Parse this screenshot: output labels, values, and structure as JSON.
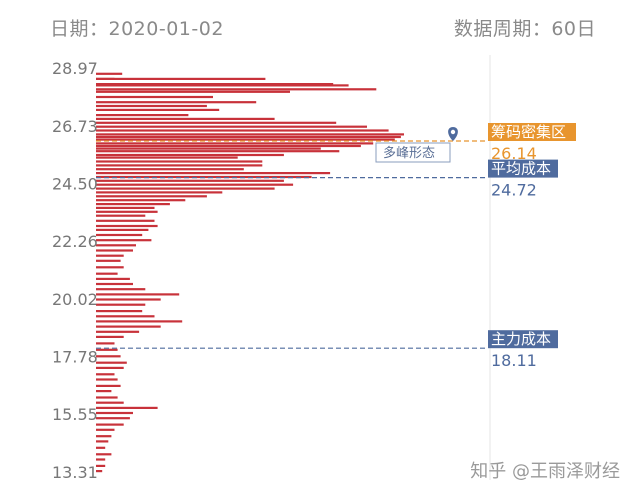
{
  "header": {
    "date_text": "日期：2020-01-02",
    "period_text": "数据周期：60日"
  },
  "colors": {
    "bars": "#c8323a",
    "chip_zone": "#e8952e",
    "avg_cost": "#4f6b9e",
    "main_cost": "#4f6b9e",
    "axis_text": "#777777",
    "divider": "#e4e4e4"
  },
  "chart_data": {
    "type": "bar",
    "orientation": "horizontal",
    "y_ticks": [
      "28.97",
      "26.73",
      "24.50",
      "22.26",
      "20.02",
      "17.78",
      "15.55",
      "13.31"
    ],
    "ylim": [
      13.31,
      28.97
    ],
    "x": [
      28.75,
      28.55,
      28.55,
      28.35,
      28.3,
      28.15,
      28.05,
      27.85,
      27.65,
      27.5,
      27.35,
      27.15,
      27.0,
      26.85,
      26.7,
      26.55,
      26.4,
      26.3,
      26.2,
      26.05,
      25.95,
      25.85,
      25.75,
      25.6,
      25.5,
      25.35,
      25.2,
      25.05,
      24.9,
      24.75,
      24.6,
      24.45,
      24.3,
      24.15,
      24.0,
      23.85,
      23.7,
      23.55,
      23.4,
      23.25,
      23.05,
      22.85,
      22.7,
      22.5,
      22.3,
      22.1,
      21.9,
      21.7,
      21.5,
      21.25,
      21.0,
      20.8,
      20.6,
      20.4,
      20.2,
      20.0,
      19.8,
      19.55,
      19.35,
      19.15,
      18.95,
      18.75,
      18.55,
      18.3,
      18.05,
      17.8,
      17.55,
      17.35,
      17.1,
      16.9,
      16.65,
      16.45,
      16.2,
      16.0,
      15.8,
      15.6,
      15.4,
      15.15,
      14.95,
      14.7,
      14.5,
      14.25,
      14.0,
      13.8,
      13.55,
      13.35
    ],
    "values": [
      8.5,
      6.0,
      55.0,
      77.0,
      82.0,
      91.0,
      63.0,
      38.0,
      52.0,
      36.0,
      40.0,
      30.0,
      58.0,
      78.0,
      88.0,
      95.0,
      100.0,
      99.0,
      97.0,
      90.0,
      86.0,
      73.0,
      79.0,
      61.0,
      46.0,
      54.0,
      54.0,
      48.0,
      76.0,
      70.0,
      61.0,
      64.0,
      58.0,
      41.0,
      36.0,
      29.0,
      24.0,
      19.0,
      20.0,
      16.0,
      19.0,
      20.0,
      17.0,
      15.0,
      18.0,
      13.0,
      12.0,
      9.0,
      8.0,
      9.0,
      7.0,
      11.0,
      12.0,
      16.0,
      27.0,
      21.0,
      16.0,
      15.0,
      19.0,
      28.0,
      21.0,
      14.0,
      9.0,
      6.0,
      7.0,
      8.0,
      10.0,
      9.0,
      6.0,
      7.0,
      8.0,
      5.0,
      7.0,
      9.0,
      20.0,
      12.0,
      11.0,
      9.0,
      6.0,
      5.0,
      4.0,
      3.0,
      5.0,
      3.0,
      3.0,
      2.0
    ],
    "annotations": {
      "chip_zone": {
        "label": "筹码密集区",
        "value": 26.14,
        "value_text": "26.14"
      },
      "avg_cost": {
        "label": "平均成本",
        "value": 24.72,
        "value_text": "24.72"
      },
      "main_cost": {
        "label": "主力成本",
        "value": 18.11,
        "value_text": "18.11"
      },
      "note": "多峰形态"
    }
  },
  "watermark": "知乎 @王雨泽财经"
}
